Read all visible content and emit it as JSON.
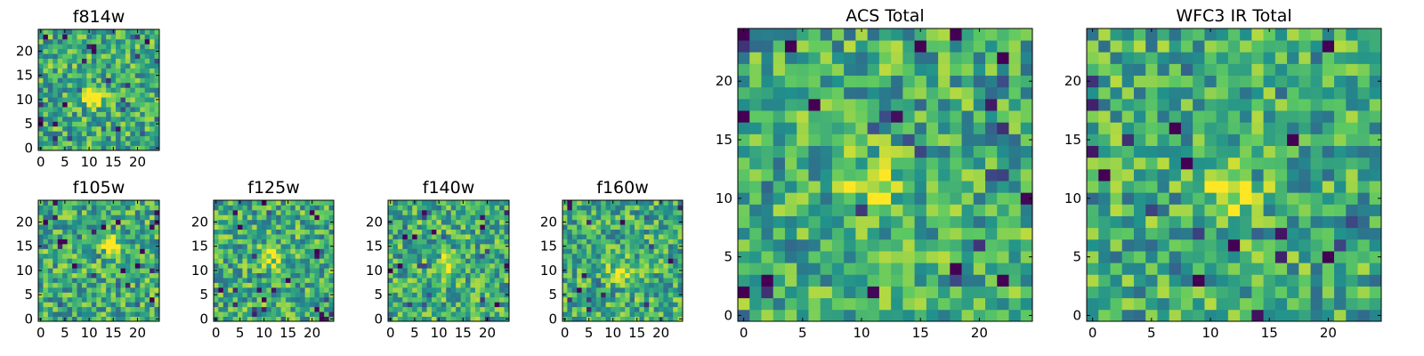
{
  "figure_caption": "",
  "chart_data": [
    {
      "type": "heatmap",
      "title": "f814w",
      "size": 25,
      "seed": 11,
      "blob": [
        11,
        11
      ],
      "xticks": [
        0,
        5,
        10,
        15,
        20
      ],
      "yticks": [
        0,
        5,
        10,
        15,
        20
      ],
      "xlim": [
        0,
        24
      ],
      "ylim": [
        0,
        24
      ]
    },
    {
      "type": "heatmap",
      "title": "f105w",
      "size": 25,
      "seed": 23,
      "blob": [
        14,
        15
      ],
      "xticks": [
        0,
        5,
        10,
        15,
        20
      ],
      "yticks": [
        0,
        5,
        10,
        15,
        20
      ],
      "xlim": [
        0,
        24
      ],
      "ylim": [
        0,
        24
      ]
    },
    {
      "type": "heatmap",
      "title": "f125w",
      "size": 25,
      "seed": 37,
      "blob": [
        12,
        13
      ],
      "xticks": [
        0,
        5,
        10,
        15,
        20
      ],
      "yticks": [
        0,
        5,
        10,
        15,
        20
      ],
      "xlim": [
        0,
        24
      ],
      "ylim": [
        0,
        24
      ]
    },
    {
      "type": "heatmap",
      "title": "f140w",
      "size": 25,
      "seed": 41,
      "blob": [
        12,
        11
      ],
      "xticks": [
        0,
        5,
        10,
        15,
        20
      ],
      "yticks": [
        0,
        5,
        10,
        15,
        20
      ],
      "xlim": [
        0,
        24
      ],
      "ylim": [
        0,
        24
      ]
    },
    {
      "type": "heatmap",
      "title": "f160w",
      "size": 25,
      "seed": 53,
      "blob": [
        12,
        10
      ],
      "xticks": [
        0,
        5,
        10,
        15,
        20
      ],
      "yticks": [
        0,
        5,
        10,
        15,
        20
      ],
      "xlim": [
        0,
        24
      ],
      "ylim": [
        0,
        24
      ]
    },
    {
      "type": "heatmap",
      "title": "ACS Total",
      "size": 25,
      "seed": 67,
      "blob": [
        11,
        11
      ],
      "xticks": [
        0,
        5,
        10,
        15,
        20
      ],
      "yticks": [
        0,
        5,
        10,
        15,
        20
      ],
      "xlim": [
        0,
        24
      ],
      "ylim": [
        0,
        24
      ]
    },
    {
      "type": "heatmap",
      "title": "WFC3 IR Total",
      "size": 25,
      "seed": 79,
      "blob": [
        12,
        11
      ],
      "xticks": [
        0,
        5,
        10,
        15,
        20
      ],
      "yticks": [
        0,
        5,
        10,
        15,
        20
      ],
      "xlim": [
        0,
        24
      ],
      "ylim": [
        0,
        24
      ]
    }
  ],
  "colormap": [
    "#440154",
    "#3b528b",
    "#21918c",
    "#5ec962",
    "#fde725"
  ]
}
